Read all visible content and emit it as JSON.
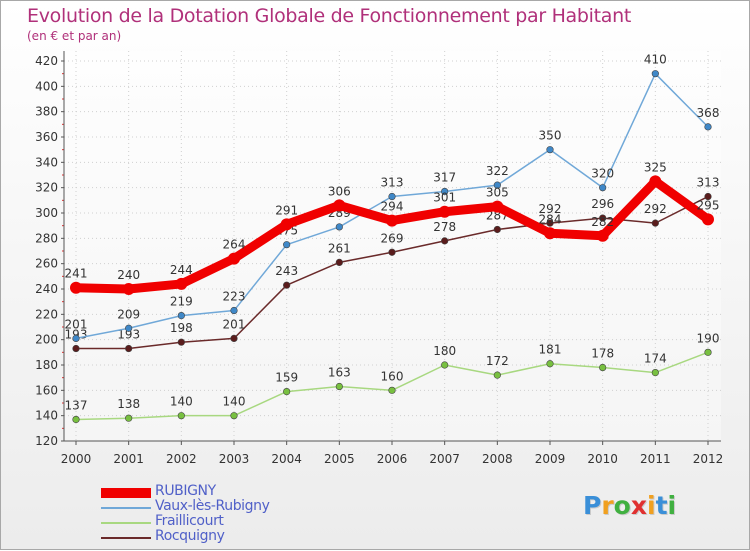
{
  "header": {
    "title": "Evolution de la Dotation Globale de Fonctionnement par Habitant",
    "subtitle": "(en € et par an)"
  },
  "logo": {
    "letters": [
      "P",
      "r",
      "o",
      "x",
      "i",
      "t",
      "i"
    ],
    "colors": [
      "#3a8fd8",
      "#f0a020",
      "#40b040",
      "#e03030",
      "#f0a020",
      "#3a8fd8",
      "#40b040"
    ]
  },
  "chart_data": {
    "type": "line",
    "title": "Evolution de la Dotation Globale de Fonctionnement par Habitant",
    "subtitle": "(en € et par an)",
    "xlabel": "",
    "ylabel": "",
    "categories": [
      "2000",
      "2001",
      "2002",
      "2003",
      "2004",
      "2005",
      "2006",
      "2007",
      "2008",
      "2009",
      "2010",
      "2011",
      "2012"
    ],
    "ylim": [
      120,
      420
    ],
    "yticks": [
      120,
      140,
      160,
      180,
      200,
      220,
      240,
      260,
      280,
      300,
      320,
      340,
      360,
      380,
      400,
      420
    ],
    "grid": true,
    "legend_position": "bottom-left",
    "series": [
      {
        "name": "Rocquigny",
        "color": "#6a2a2a",
        "marker": "#5a1c1c",
        "values": [
          193,
          193,
          198,
          201,
          243,
          261,
          269,
          278,
          287,
          292,
          296,
          292,
          313
        ]
      },
      {
        "name": "Fraillicourt",
        "color": "#a8d880",
        "marker": "#78c040",
        "values": [
          137,
          138,
          140,
          140,
          159,
          163,
          160,
          180,
          172,
          181,
          178,
          174,
          190
        ]
      },
      {
        "name": "Vaux-lès-Rubigny",
        "color": "#70a8d8",
        "marker": "#3f88c8",
        "values": [
          201,
          209,
          219,
          223,
          275,
          289,
          313,
          317,
          322,
          350,
          320,
          410,
          368
        ]
      },
      {
        "name": "RUBIGNY",
        "color": "#f00000",
        "marker": "#f00000",
        "values": [
          241,
          240,
          244,
          264,
          291,
          306,
          294,
          301,
          305,
          284,
          282,
          325,
          295
        ]
      }
    ]
  }
}
